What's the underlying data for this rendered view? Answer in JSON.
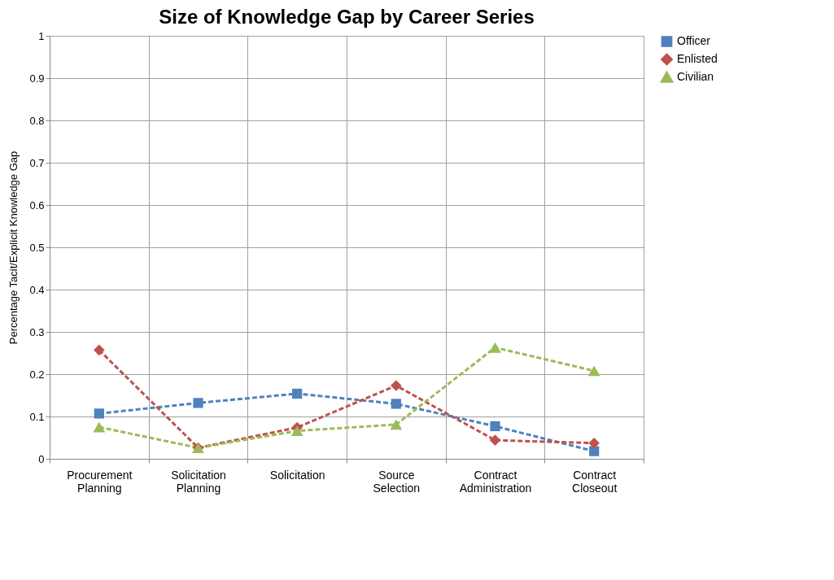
{
  "chart_data": {
    "type": "line",
    "title": "Size of Knowledge Gap by Career Series",
    "ylabel": "Percentage Tacit/Explicit Knowledge Gap",
    "categories": [
      "Procurement Planning",
      "Solicitation Planning",
      "Solicitation",
      "Source Selection",
      "Contract Administration",
      "Contract Closeout"
    ],
    "series": [
      {
        "name": "Officer",
        "color": "#4f81bd",
        "marker": "square",
        "values": [
          0.107,
          0.132,
          0.154,
          0.13,
          0.077,
          0.018
        ]
      },
      {
        "name": "Enlisted",
        "color": "#c0504d",
        "marker": "diamond",
        "values": [
          0.257,
          0.026,
          0.074,
          0.173,
          0.044,
          0.037
        ]
      },
      {
        "name": "Civilian",
        "color": "#9bbb59",
        "marker": "triangle",
        "values": [
          0.075,
          0.026,
          0.066,
          0.081,
          0.263,
          0.208
        ]
      }
    ],
    "ylim": [
      0,
      1
    ],
    "yticks": [
      0,
      0.1,
      0.2,
      0.3,
      0.4,
      0.5,
      0.6,
      0.7,
      0.8,
      0.9,
      1
    ],
    "grid": true,
    "legend": "right",
    "line_style": "dashed"
  }
}
